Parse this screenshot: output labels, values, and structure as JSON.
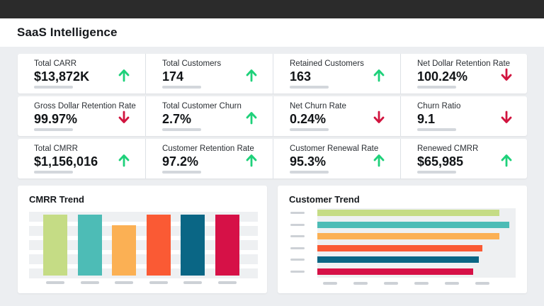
{
  "app": {
    "title": "SaaS Intelligence"
  },
  "kpis": [
    {
      "label": "Total CARR",
      "value": "$13,872K",
      "trend": "up",
      "icon": "arrow-up-icon"
    },
    {
      "label": "Total Customers",
      "value": "174",
      "trend": "up",
      "icon": "arrow-up-icon"
    },
    {
      "label": "Retained Customers",
      "value": "163",
      "trend": "up",
      "icon": "arrow-up-icon"
    },
    {
      "label": "Net Dollar Retention Rate",
      "value": "100.24%",
      "trend": "down",
      "icon": "arrow-down-icon"
    },
    {
      "label": "Gross Dollar Retention Rate",
      "value": "99.97%",
      "trend": "down",
      "icon": "arrow-down-icon"
    },
    {
      "label": "Total Customer Churn",
      "value": "2.7%",
      "trend": "up",
      "icon": "arrow-up-icon"
    },
    {
      "label": "Net Churn Rate",
      "value": "0.24%",
      "trend": "down",
      "icon": "arrow-down-icon"
    },
    {
      "label": "Churn Ratio",
      "value": "9.1",
      "trend": "down",
      "icon": "arrow-down-icon"
    },
    {
      "label": "Total CMRR",
      "value": "$1,156,016",
      "trend": "up",
      "icon": "arrow-up-icon"
    },
    {
      "label": "Customer Retention Rate",
      "value": "97.2%",
      "trend": "up",
      "icon": "arrow-up-icon"
    },
    {
      "label": "Customer Renewal Rate",
      "value": "95.3%",
      "trend": "up",
      "icon": "arrow-up-icon"
    },
    {
      "label": "Renewed CMRR",
      "value": "$65,985",
      "trend": "up",
      "icon": "arrow-up-icon"
    }
  ],
  "colors": {
    "up": "#1ed17a",
    "down": "#d1143f"
  },
  "panels": {
    "cmrr_title": "CMRR Trend",
    "customer_title": "Customer Trend"
  },
  "chart_data": [
    {
      "type": "bar",
      "title": "CMRR Trend",
      "values": [
        0.82,
        0.82,
        0.68,
        0.82,
        0.82,
        0.82
      ],
      "colors": [
        "#c5dc85",
        "#4dbcb6",
        "#fbb054",
        "#fa5a34",
        "#0a6685",
        "#d61147"
      ]
    },
    {
      "type": "bar",
      "orientation": "horizontal",
      "title": "Customer Trend",
      "values": [
        0.95,
        1.0,
        0.95,
        0.86,
        0.84,
        0.81
      ],
      "colors": [
        "#c5dc85",
        "#4dbcb6",
        "#fbb054",
        "#fa5a34",
        "#0a6685",
        "#d61147"
      ]
    }
  ]
}
